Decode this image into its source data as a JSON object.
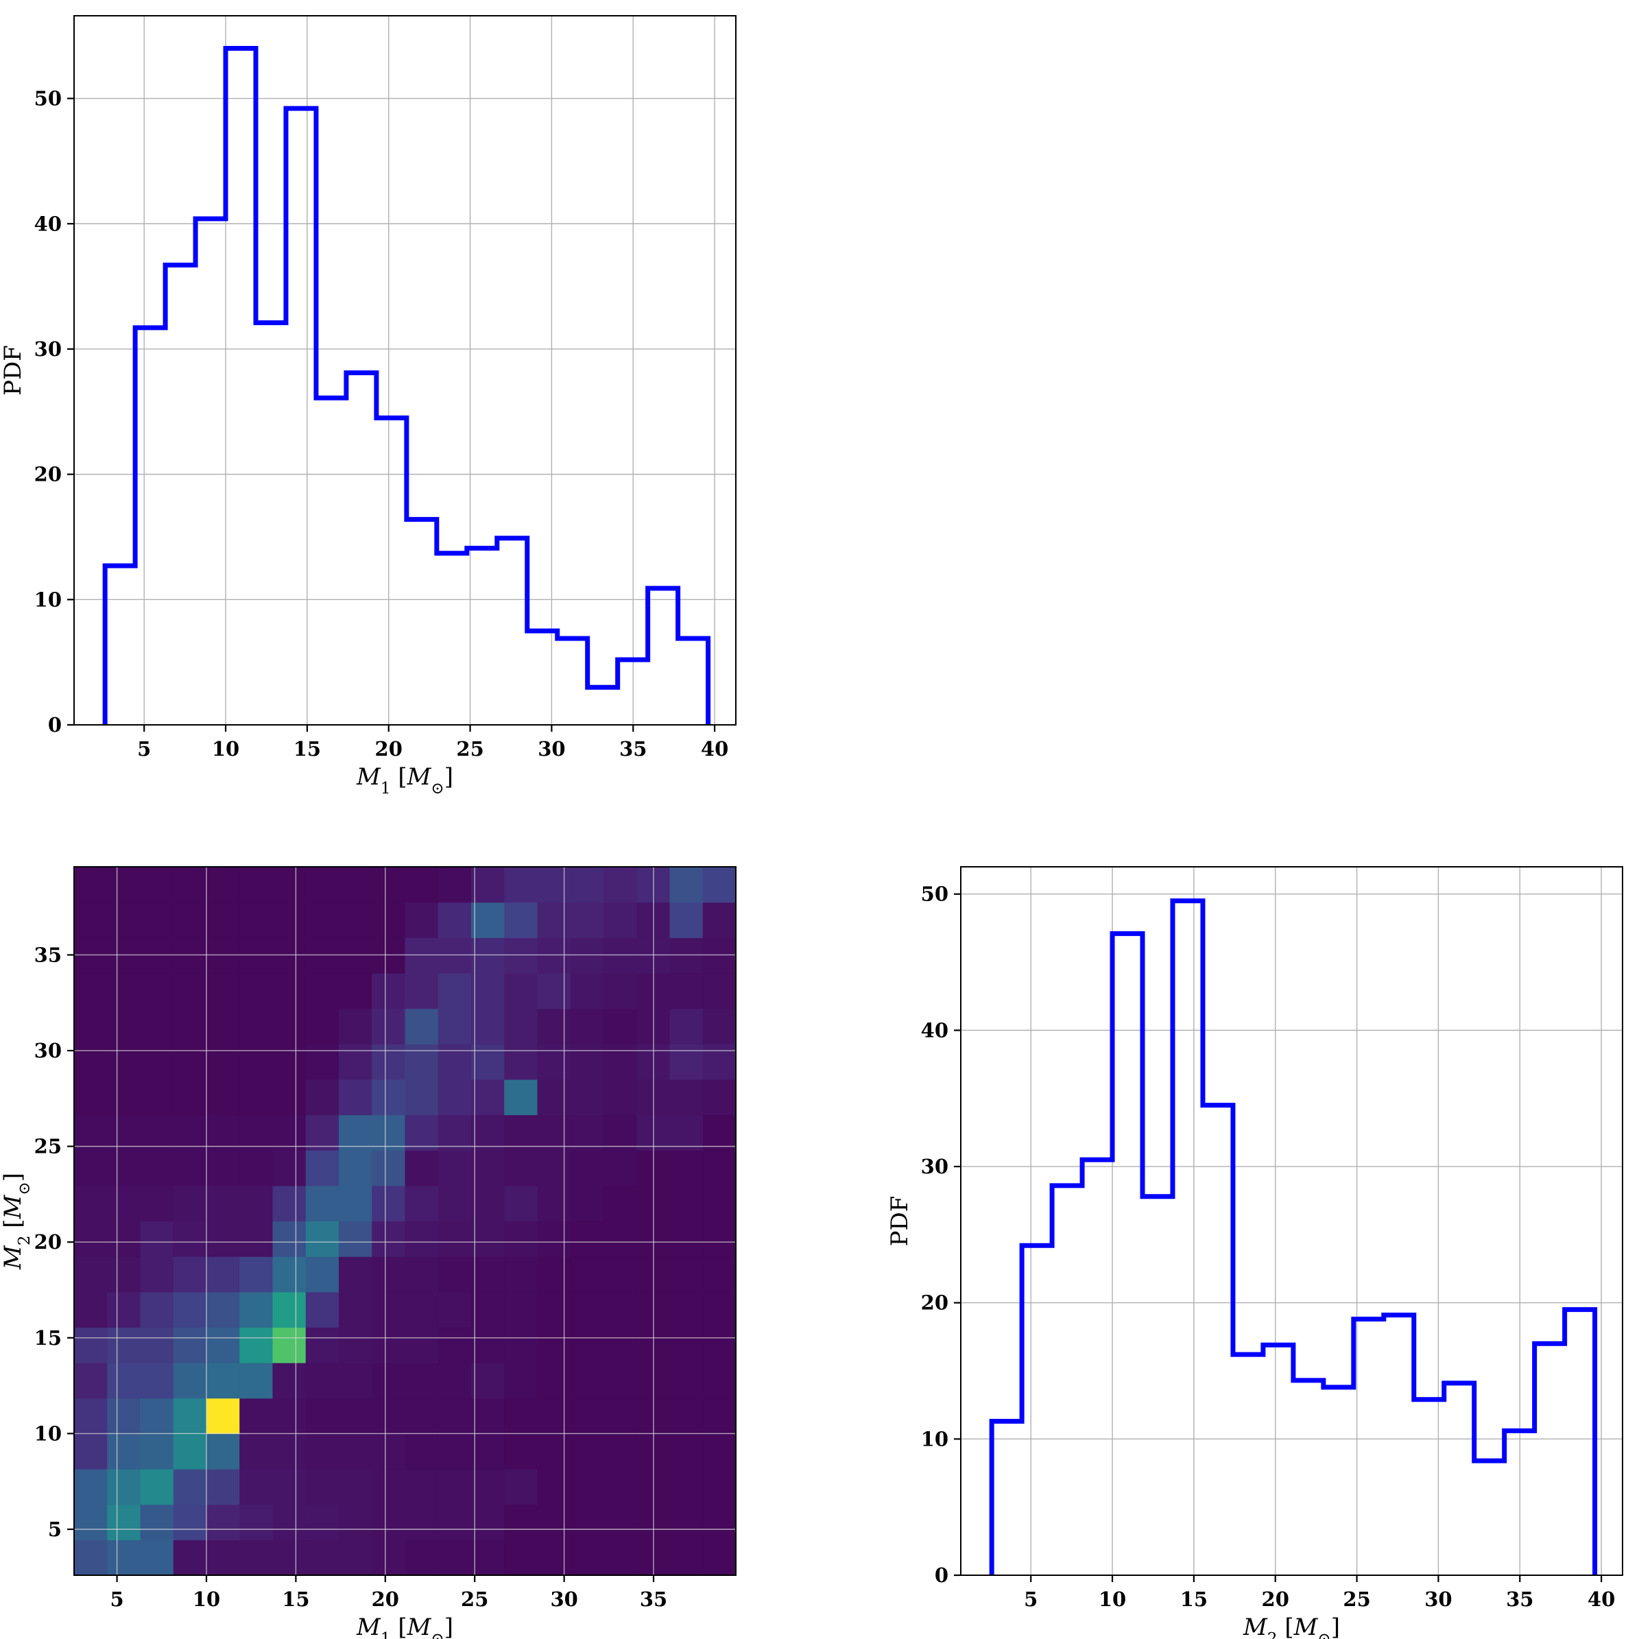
{
  "chart_data": [
    {
      "id": "m1_hist",
      "type": "histogram",
      "xlabel": "M_1 [M_⊙]",
      "ylabel": "PDF",
      "xlim": [
        0.7,
        41.3
      ],
      "ylim": [
        0,
        56.6
      ],
      "xticks": [
        5,
        10,
        15,
        20,
        25,
        30,
        35,
        40
      ],
      "yticks": [
        0,
        10,
        20,
        30,
        40,
        50
      ],
      "grid": true,
      "color": "#0000ff",
      "bin_edges": [
        2.6,
        4.45,
        6.3,
        8.15,
        10.0,
        11.85,
        13.7,
        15.55,
        17.4,
        19.25,
        21.1,
        22.95,
        24.8,
        26.65,
        28.5,
        30.35,
        32.2,
        34.05,
        35.9,
        37.75,
        39.6
      ],
      "values": [
        12.7,
        31.7,
        36.7,
        40.4,
        54.0,
        32.1,
        49.2,
        26.1,
        28.1,
        24.5,
        16.4,
        13.7,
        14.1,
        14.9,
        7.5,
        6.9,
        3.0,
        5.2,
        10.9,
        6.9
      ]
    },
    {
      "id": "joint_hist",
      "type": "heatmap",
      "xlabel": "M_1 [M_⊙]",
      "ylabel": "M_2 [M_⊙]",
      "xlim": [
        2.6,
        39.6
      ],
      "ylim": [
        2.6,
        39.6
      ],
      "xticks": [
        5,
        10,
        15,
        20,
        25,
        30,
        35
      ],
      "yticks": [
        5,
        10,
        15,
        20,
        25,
        30,
        35
      ],
      "grid": true,
      "colormap": "viridis",
      "bins": 20,
      "values_rows_low_to_high_M2": [
        [
          0.25,
          0.3,
          0.3,
          0.05,
          0.05,
          0.05,
          0.05,
          0.05,
          0.05,
          0.04,
          0.03,
          0.03,
          0.03,
          0.02,
          0.02,
          0.02,
          0.02,
          0.02,
          0.02,
          0.02
        ],
        [
          0.3,
          0.45,
          0.28,
          0.2,
          0.1,
          0.08,
          0.06,
          0.06,
          0.05,
          0.04,
          0.04,
          0.04,
          0.04,
          0.02,
          0.02,
          0.02,
          0.02,
          0.02,
          0.02,
          0.02
        ],
        [
          0.3,
          0.4,
          0.47,
          0.22,
          0.18,
          0.06,
          0.06,
          0.05,
          0.05,
          0.04,
          0.04,
          0.04,
          0.04,
          0.05,
          0.02,
          0.02,
          0.02,
          0.02,
          0.02,
          0.02
        ],
        [
          0.15,
          0.3,
          0.32,
          0.46,
          0.33,
          0.05,
          0.05,
          0.04,
          0.04,
          0.04,
          0.03,
          0.03,
          0.03,
          0.02,
          0.02,
          0.02,
          0.02,
          0.02,
          0.02,
          0.02
        ],
        [
          0.15,
          0.25,
          0.3,
          0.45,
          1.0,
          0.04,
          0.04,
          0.03,
          0.03,
          0.03,
          0.03,
          0.03,
          0.03,
          0.02,
          0.02,
          0.02,
          0.02,
          0.02,
          0.02,
          0.02
        ],
        [
          0.1,
          0.2,
          0.2,
          0.32,
          0.35,
          0.35,
          0.05,
          0.04,
          0.04,
          0.03,
          0.03,
          0.03,
          0.05,
          0.03,
          0.02,
          0.02,
          0.02,
          0.02,
          0.02,
          0.02
        ],
        [
          0.15,
          0.18,
          0.18,
          0.25,
          0.3,
          0.52,
          0.72,
          0.06,
          0.05,
          0.04,
          0.04,
          0.03,
          0.03,
          0.03,
          0.02,
          0.02,
          0.02,
          0.02,
          0.02,
          0.02
        ],
        [
          0.05,
          0.08,
          0.15,
          0.2,
          0.25,
          0.35,
          0.55,
          0.15,
          0.05,
          0.04,
          0.04,
          0.04,
          0.03,
          0.03,
          0.02,
          0.02,
          0.02,
          0.02,
          0.02,
          0.02
        ],
        [
          0.05,
          0.05,
          0.08,
          0.12,
          0.15,
          0.2,
          0.35,
          0.3,
          0.05,
          0.04,
          0.04,
          0.03,
          0.03,
          0.03,
          0.02,
          0.02,
          0.02,
          0.02,
          0.02,
          0.02
        ],
        [
          0.04,
          0.04,
          0.08,
          0.06,
          0.05,
          0.05,
          0.25,
          0.4,
          0.25,
          0.08,
          0.06,
          0.05,
          0.05,
          0.04,
          0.03,
          0.02,
          0.02,
          0.02,
          0.02,
          0.02
        ],
        [
          0.04,
          0.04,
          0.04,
          0.05,
          0.05,
          0.05,
          0.15,
          0.3,
          0.3,
          0.15,
          0.08,
          0.06,
          0.05,
          0.07,
          0.04,
          0.03,
          0.02,
          0.02,
          0.02,
          0.02
        ],
        [
          0.03,
          0.03,
          0.03,
          0.03,
          0.03,
          0.03,
          0.04,
          0.2,
          0.3,
          0.25,
          0.04,
          0.06,
          0.05,
          0.04,
          0.04,
          0.03,
          0.03,
          0.02,
          0.02,
          0.02
        ],
        [
          0.03,
          0.03,
          0.03,
          0.03,
          0.03,
          0.03,
          0.03,
          0.1,
          0.3,
          0.3,
          0.12,
          0.08,
          0.06,
          0.04,
          0.04,
          0.04,
          0.03,
          0.06,
          0.06,
          0.02
        ],
        [
          0.02,
          0.02,
          0.02,
          0.02,
          0.02,
          0.02,
          0.02,
          0.05,
          0.12,
          0.2,
          0.18,
          0.12,
          0.1,
          0.36,
          0.05,
          0.05,
          0.04,
          0.05,
          0.05,
          0.04
        ],
        [
          0.02,
          0.02,
          0.02,
          0.02,
          0.02,
          0.02,
          0.02,
          0.03,
          0.08,
          0.15,
          0.18,
          0.12,
          0.15,
          0.08,
          0.06,
          0.05,
          0.04,
          0.06,
          0.1,
          0.08
        ],
        [
          0.02,
          0.02,
          0.02,
          0.02,
          0.02,
          0.02,
          0.02,
          0.02,
          0.05,
          0.1,
          0.25,
          0.15,
          0.12,
          0.08,
          0.05,
          0.04,
          0.03,
          0.04,
          0.08,
          0.05
        ],
        [
          0.02,
          0.02,
          0.02,
          0.02,
          0.02,
          0.02,
          0.02,
          0.02,
          0.02,
          0.08,
          0.1,
          0.15,
          0.12,
          0.08,
          0.1,
          0.06,
          0.05,
          0.04,
          0.04,
          0.04
        ],
        [
          0.02,
          0.02,
          0.02,
          0.02,
          0.02,
          0.02,
          0.02,
          0.02,
          0.02,
          0.02,
          0.1,
          0.1,
          0.12,
          0.1,
          0.08,
          0.07,
          0.06,
          0.06,
          0.05,
          0.04
        ],
        [
          0.02,
          0.02,
          0.02,
          0.02,
          0.02,
          0.02,
          0.02,
          0.02,
          0.02,
          0.02,
          0.05,
          0.12,
          0.3,
          0.2,
          0.1,
          0.1,
          0.08,
          0.06,
          0.2,
          0.05
        ],
        [
          0.02,
          0.02,
          0.02,
          0.02,
          0.02,
          0.02,
          0.02,
          0.02,
          0.02,
          0.02,
          0.02,
          0.03,
          0.08,
          0.12,
          0.12,
          0.12,
          0.1,
          0.12,
          0.25,
          0.2
        ]
      ]
    },
    {
      "id": "m2_hist",
      "type": "histogram",
      "xlabel": "M_2 [M_⊙]",
      "ylabel": "PDF",
      "xlim": [
        0.7,
        41.3
      ],
      "ylim": [
        0,
        52
      ],
      "xticks": [
        5,
        10,
        15,
        20,
        25,
        30,
        35,
        40
      ],
      "yticks": [
        0,
        10,
        20,
        30,
        40,
        50
      ],
      "grid": true,
      "color": "#0000ff",
      "bin_edges": [
        2.6,
        4.45,
        6.3,
        8.15,
        10.0,
        11.85,
        13.7,
        15.55,
        17.4,
        19.25,
        21.1,
        22.95,
        24.8,
        26.65,
        28.5,
        30.35,
        32.2,
        34.05,
        35.9,
        37.75,
        39.6
      ],
      "values": [
        11.3,
        24.2,
        28.6,
        30.5,
        47.1,
        27.8,
        49.5,
        34.5,
        16.2,
        16.9,
        14.3,
        13.8,
        18.8,
        19.1,
        12.9,
        14.1,
        8.4,
        10.6,
        17.0,
        19.5
      ]
    }
  ]
}
